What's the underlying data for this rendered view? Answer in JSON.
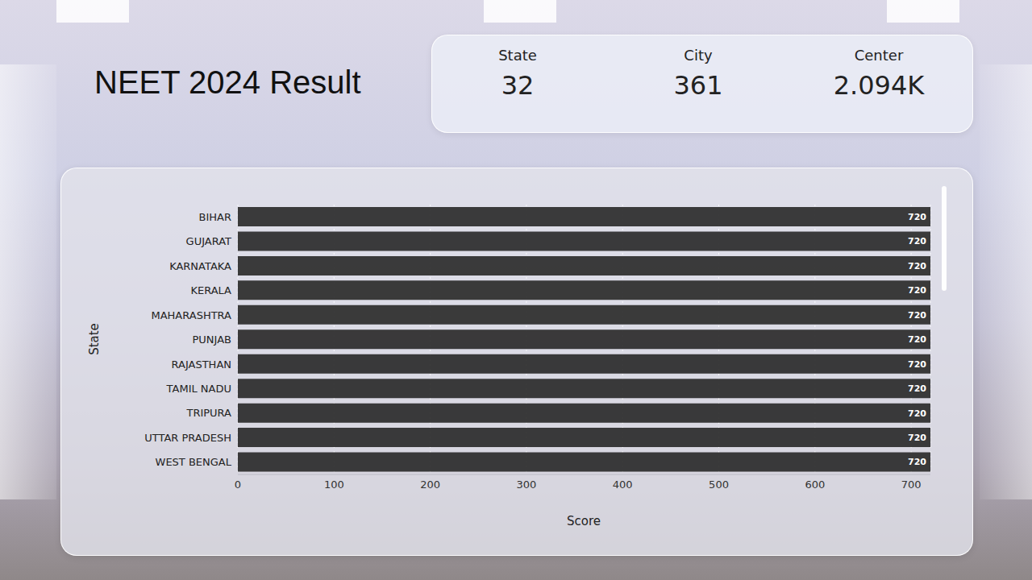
{
  "cards": [
    {
      "label": "State",
      "value": 32
    },
    {
      "label": "City",
      "value": 361
    },
    {
      "label": "Center",
      "value": 2094,
      "value_label": "2.094K"
    }
  ],
  "chart_data": {
    "type": "bar",
    "title": "NEET 2024 Result",
    "orientation": "horizontal",
    "categories": [
      "BIHAR",
      "GUJARAT",
      "KARNATAKA",
      "KERALA",
      "MAHARASHTRA",
      "PUNJAB",
      "RAJASTHAN",
      "TAMIL NADU",
      "TRIPURA",
      "UTTAR PRADESH",
      "WEST BENGAL"
    ],
    "values": [
      720,
      720,
      720,
      720,
      720,
      720,
      720,
      720,
      720,
      720,
      720
    ],
    "color": "#2b2b2b",
    "x_label": "Score",
    "y_label": "State",
    "xlim": [
      0,
      720
    ],
    "xticks": [
      0,
      100,
      200,
      300,
      400,
      500,
      600,
      700
    ],
    "grid": true,
    "data_labels": true
  }
}
